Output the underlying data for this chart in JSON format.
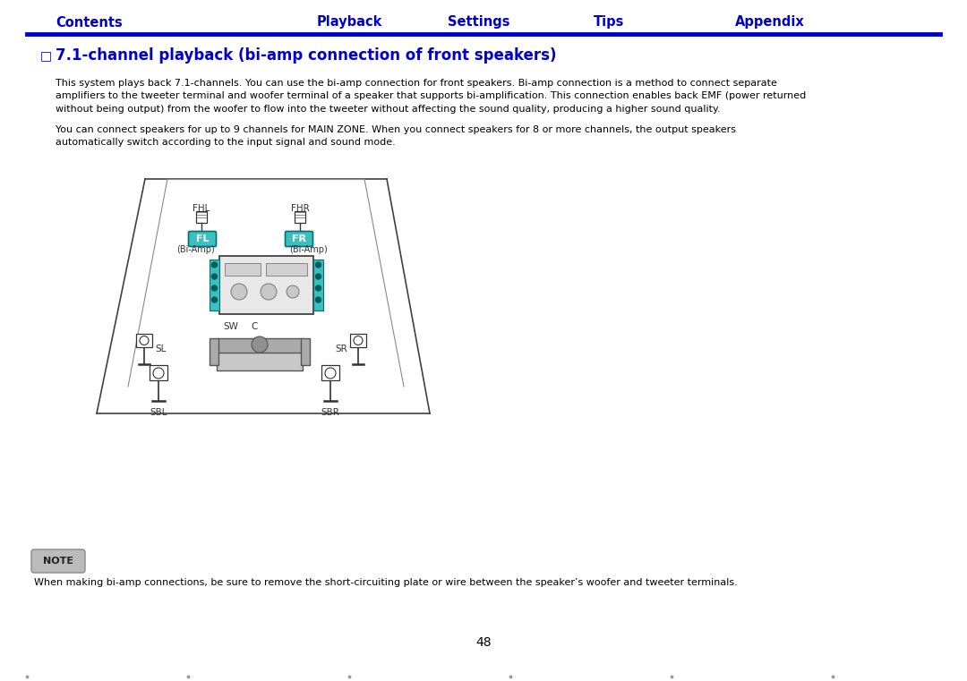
{
  "title": "7.1-channel playback (bi-amp connection of front speakers)",
  "nav_items": [
    "Contents",
    "Playback",
    "Settings",
    "Tips",
    "Appendix"
  ],
  "nav_x": [
    100,
    390,
    535,
    680,
    860
  ],
  "nav_color": "#0000CC",
  "nav_line_color": "#0000CC",
  "body_text1": "This system plays back 7.1-channels. You can use the bi-amp connection for front speakers. Bi-amp connection is a method to connect separate\namplifiers to the tweeter terminal and woofer terminal of a speaker that supports bi-amplification. This connection enables back EMF (power returned\nwithout being output) from the woofer to flow into the tweeter without affecting the sound quality, producing a higher sound quality.",
  "body_text2": "You can connect speakers for up to 9 channels for MAIN ZONE. When you connect speakers for 8 or more channels, the output speakers\nautomatically switch according to the input signal and sound mode.",
  "note_text": "When making bi-amp connections, be sure to remove the short-circuiting plate or wire between the speaker’s woofer and tweeter terminals.",
  "page_number": "48",
  "bg_color": "#ffffff",
  "text_color": "#000000",
  "teal_color": "#3DBFBF"
}
